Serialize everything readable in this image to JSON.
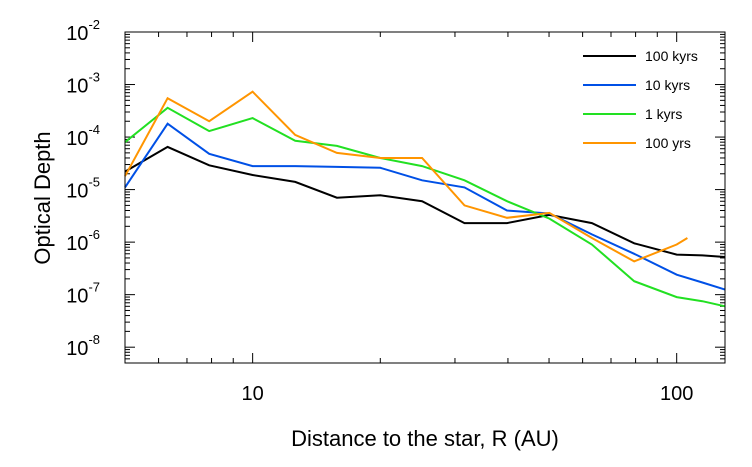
{
  "chart_data": {
    "type": "line",
    "title": "",
    "xlabel": "Distance to the star, R (AU)",
    "ylabel": "Optical Depth",
    "x_scale": "log",
    "y_scale": "log",
    "xlim": [
      5,
      130
    ],
    "ylim": [
      5e-09,
      0.01
    ],
    "x_ticks": [
      {
        "value": 10,
        "label": "10"
      },
      {
        "value": 100,
        "label": "100"
      }
    ],
    "y_ticks": [
      {
        "value": 0.01,
        "mantissa": "10",
        "exponent": "-2"
      },
      {
        "value": 0.001,
        "mantissa": "10",
        "exponent": "-3"
      },
      {
        "value": 0.0001,
        "mantissa": "10",
        "exponent": "-4"
      },
      {
        "value": 1e-05,
        "mantissa": "10",
        "exponent": "-5"
      },
      {
        "value": 1e-06,
        "mantissa": "10",
        "exponent": "-6"
      },
      {
        "value": 1e-07,
        "mantissa": "10",
        "exponent": "-7"
      },
      {
        "value": 1e-08,
        "mantissa": "10",
        "exponent": "-8"
      }
    ],
    "grid": false,
    "legend_position": "top-right",
    "series": [
      {
        "name": "100 kyrs",
        "color": "#000000",
        "x": [
          5,
          6.3,
          7.9,
          10,
          12.6,
          15.8,
          20,
          25.1,
          31.6,
          39.8,
          50.1,
          63.1,
          79.4,
          100,
          115,
          130
        ],
        "y": [
          2.2e-05,
          6.5e-05,
          2.9e-05,
          1.9e-05,
          1.4e-05,
          7e-06,
          7.8e-06,
          6e-06,
          2.3e-06,
          2.3e-06,
          3.3e-06,
          2.3e-06,
          9.5e-07,
          5.8e-07,
          5.6e-07,
          5.2e-07
        ]
      },
      {
        "name": "10 kyrs",
        "color": "#0050e6",
        "x": [
          5,
          6.3,
          7.9,
          10,
          12.6,
          15.8,
          20,
          25.1,
          31.6,
          39.8,
          50.1,
          63.1,
          79.4,
          100,
          115,
          130
        ],
        "y": [
          1.1e-05,
          0.00018,
          4.8e-05,
          2.8e-05,
          2.8e-05,
          2.7e-05,
          2.6e-05,
          1.5e-05,
          1.1e-05,
          4e-06,
          3.5e-06,
          1.4e-06,
          6e-07,
          2.4e-07,
          1.7e-07,
          1.25e-07
        ]
      },
      {
        "name": "1 kyrs",
        "color": "#22e022",
        "x": [
          5,
          6.3,
          7.9,
          10,
          12.6,
          15.8,
          20,
          25.1,
          31.6,
          39.8,
          50.1,
          63.1,
          79.4,
          100,
          115,
          130
        ],
        "y": [
          8e-05,
          0.00036,
          0.00013,
          0.00023,
          8.5e-05,
          6.8e-05,
          4e-05,
          2.8e-05,
          1.5e-05,
          6e-06,
          2.8e-06,
          9e-07,
          1.8e-07,
          9e-08,
          7.5e-08,
          6e-08
        ]
      },
      {
        "name": "100 yrs",
        "color": "#ff9500",
        "x": [
          5,
          6.3,
          7.9,
          10,
          12.6,
          15.8,
          20,
          25.1,
          31.6,
          39.8,
          50.1,
          63.1,
          79.4,
          100,
          106
        ],
        "y": [
          1.8e-05,
          0.00055,
          0.0002,
          0.00073,
          0.00011,
          5e-05,
          4e-05,
          4e-05,
          5e-06,
          2.9e-06,
          3.6e-06,
          1.2e-06,
          4.3e-07,
          9e-07,
          1.2e-06
        ]
      }
    ]
  }
}
